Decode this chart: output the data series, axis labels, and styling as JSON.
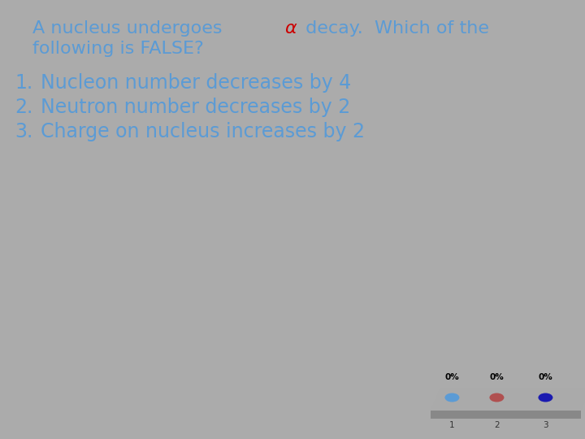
{
  "bg_color": "#ABABAB",
  "title_part1": "A nucleus undergoes ",
  "title_alpha": "α",
  "title_part2": " decay.  Which of the",
  "title_line2": "following is FALSE?",
  "title_color": "#5B9BD5",
  "alpha_color": "#CC0000",
  "items": [
    "Nucleon number decreases by 4",
    "Neutron number decreases by 2",
    "Charge on nucleus increases by 2"
  ],
  "item_color": "#5B9BD5",
  "vote_labels": [
    "0%",
    "0%",
    "0%"
  ],
  "vote_numbers": [
    "1",
    "2",
    "3"
  ],
  "dot_colors": [
    "#5B9BD5",
    "#B05050",
    "#1A1AB0"
  ],
  "panel_top_color": "#AAAAAA",
  "panel_side_color": "#888888"
}
